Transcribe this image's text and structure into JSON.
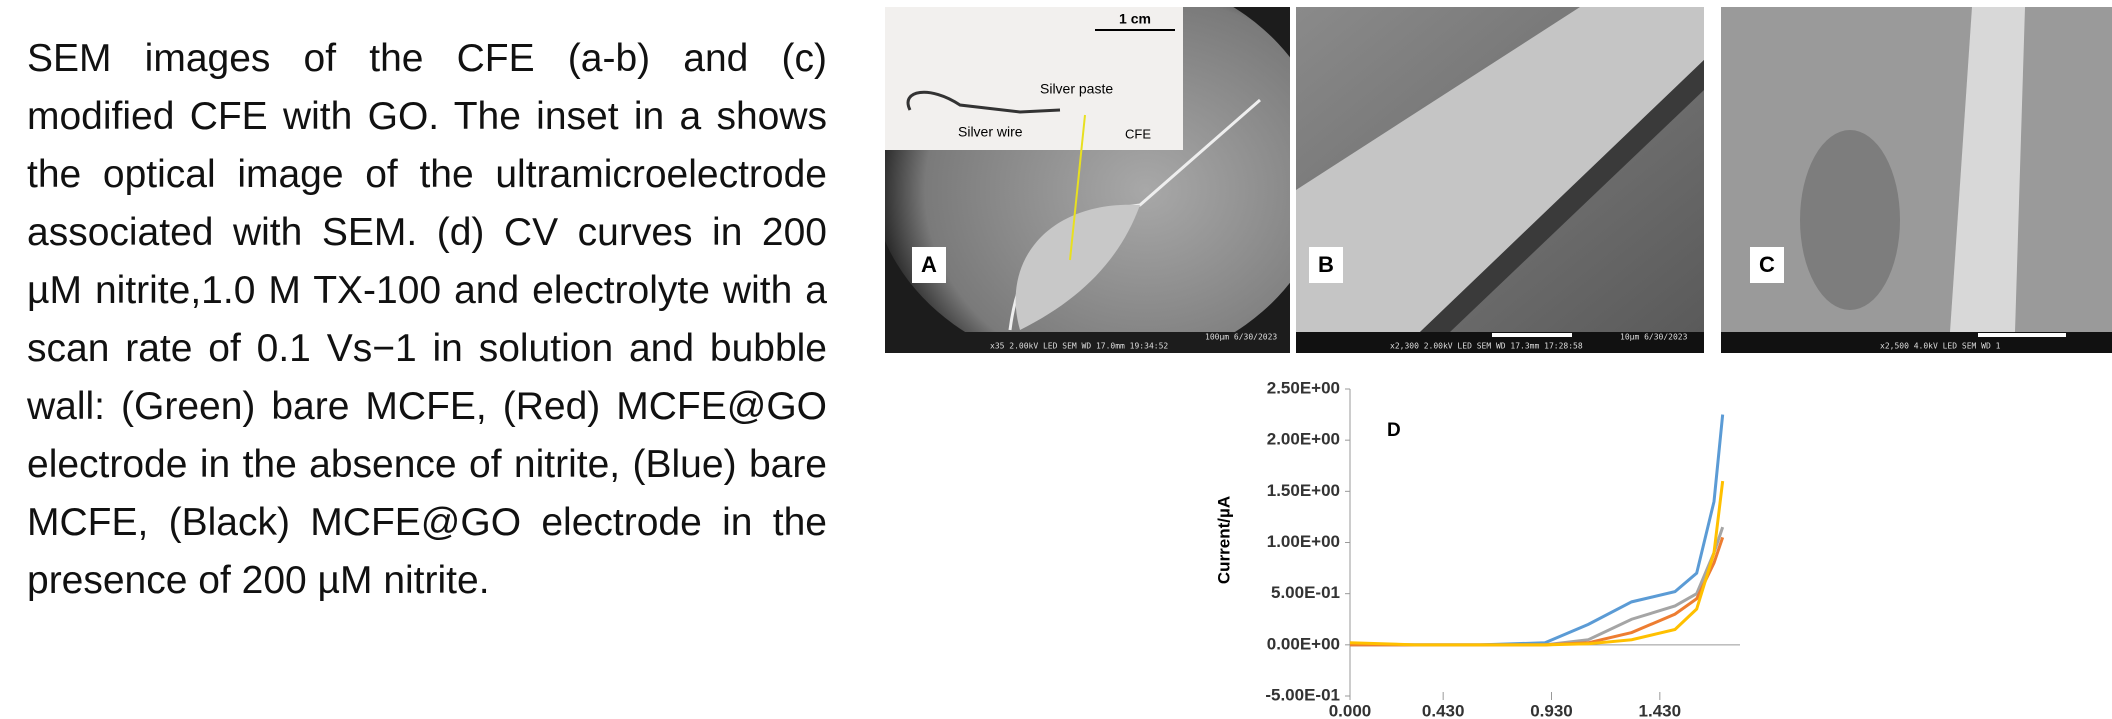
{
  "caption": "SEM images of the CFE (a-b) and (c) modified CFE with GO. The inset in a shows the optical image of the ultramicroelectrode associated with SEM. (d) CV curves in 200 µM nitrite,1.0 M TX-100 and electrolyte with a scan rate of 0.1 Vs−1 in solution and bubble wall: (Green) bare MCFE, (Red) MCFE@GO electrode in the absence of nitrite, (Blue) bare MCFE, (Black) MCFE@GO electrode in the presence of 200 µM nitrite.",
  "panels": [
    {
      "label": "A",
      "inset": {
        "scale": "1 cm",
        "paste": "Silver paste",
        "wire": "Silver wire",
        "cfe": "CFE"
      },
      "scale_info": "100µm 6/30/2023",
      "info": "x35      2.00kV LED      SEM      WD 17.0mm 19:34:52"
    },
    {
      "label": "B",
      "scale_info": "10µm  6/30/2023",
      "info": "x2,300      2.00kV LED      SEM      WD 17.3mm 17:28:58"
    },
    {
      "label": "C",
      "info": "x2,500      4.0kV  LED      SEM      WD 1"
    }
  ],
  "chart_data": {
    "type": "line",
    "label": "D",
    "ylabel": "Current/µA",
    "x": [
      0,
      0.3,
      0.6,
      0.9,
      1.1,
      1.3,
      1.5,
      1.6,
      1.68,
      1.72
    ],
    "series": [
      {
        "color": "#5b9bd5",
        "values": [
          0,
          0,
          0,
          0.02,
          0.2,
          0.42,
          0.52,
          0.7,
          1.4,
          2.25
        ]
      },
      {
        "color": "#a5a5a5",
        "values": [
          0,
          0,
          0,
          0,
          0.05,
          0.25,
          0.38,
          0.5,
          0.9,
          1.15
        ]
      },
      {
        "color": "#ed7d31",
        "values": [
          0,
          0,
          0,
          0,
          0.02,
          0.12,
          0.3,
          0.45,
          0.8,
          1.05
        ]
      },
      {
        "color": "#ffc000",
        "values": [
          0.02,
          0,
          0,
          0,
          0.01,
          0.05,
          0.15,
          0.35,
          0.9,
          1.6
        ]
      }
    ],
    "xlim": [
      0,
      1.8
    ],
    "ylim": [
      -0.5,
      2.5
    ],
    "xticks": [
      {
        "value": 0,
        "label": "0.000"
      },
      {
        "value": 0.43,
        "label": "0.430"
      },
      {
        "value": 0.93,
        "label": "0.930"
      },
      {
        "value": 1.43,
        "label": "1.430"
      }
    ],
    "yticks": [
      {
        "value": -0.5,
        "label": "-5.00E-01"
      },
      {
        "value": 0,
        "label": "0.00E+00"
      },
      {
        "value": 0.5,
        "label": "5.00E-01"
      },
      {
        "value": 1,
        "label": "1.00E+00"
      },
      {
        "value": 1.5,
        "label": "1.50E+00"
      },
      {
        "value": 2,
        "label": "2.00E+00"
      },
      {
        "value": 2.5,
        "label": "2.50E+00"
      }
    ]
  }
}
